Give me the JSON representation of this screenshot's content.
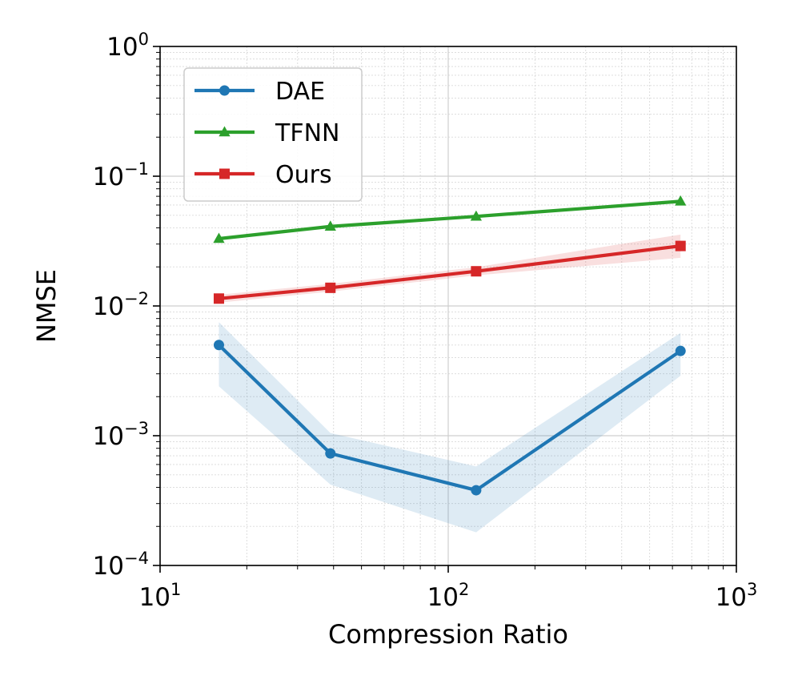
{
  "chart_data": {
    "type": "line",
    "title": "",
    "xlabel": "Compression Ratio",
    "ylabel": "NMSE",
    "xscale": "log",
    "yscale": "log",
    "xlim": [
      10,
      1000
    ],
    "ylim": [
      0.0001,
      1
    ],
    "grid": true,
    "legend_position": "top-left",
    "x_ticks": [
      {
        "value": 10,
        "base": "10",
        "exp": "1"
      },
      {
        "value": 100,
        "base": "10",
        "exp": "2"
      },
      {
        "value": 1000,
        "base": "10",
        "exp": "3"
      }
    ],
    "y_ticks": [
      {
        "value": 1,
        "base": "10",
        "exp": "0"
      },
      {
        "value": 0.1,
        "base": "10",
        "exp": "−1"
      },
      {
        "value": 0.01,
        "base": "10",
        "exp": "−2"
      },
      {
        "value": 0.001,
        "base": "10",
        "exp": "−3"
      },
      {
        "value": 0.0001,
        "base": "10",
        "exp": "−4"
      }
    ],
    "series": [
      {
        "name": "DAE",
        "color": "#1f77b4",
        "marker": "circle",
        "x": [
          16,
          39,
          125,
          640
        ],
        "y": [
          0.005,
          0.00073,
          0.00038,
          0.0045
        ],
        "band_lower": [
          0.0024,
          0.00042,
          0.00018,
          0.0029
        ],
        "band_upper": [
          0.0075,
          0.00105,
          0.00058,
          0.0062
        ]
      },
      {
        "name": "TFNN",
        "color": "#2ca02c",
        "marker": "triangle",
        "x": [
          16,
          39,
          125,
          640
        ],
        "y": [
          0.033,
          0.041,
          0.049,
          0.064
        ]
      },
      {
        "name": "Ours",
        "color": "#d62728",
        "marker": "square",
        "x": [
          16,
          39,
          125,
          640
        ],
        "y": [
          0.0114,
          0.0138,
          0.0185,
          0.029
        ],
        "band_lower": [
          0.0106,
          0.0129,
          0.0172,
          0.0235
        ],
        "band_upper": [
          0.0122,
          0.0148,
          0.0199,
          0.0355
        ]
      }
    ]
  }
}
